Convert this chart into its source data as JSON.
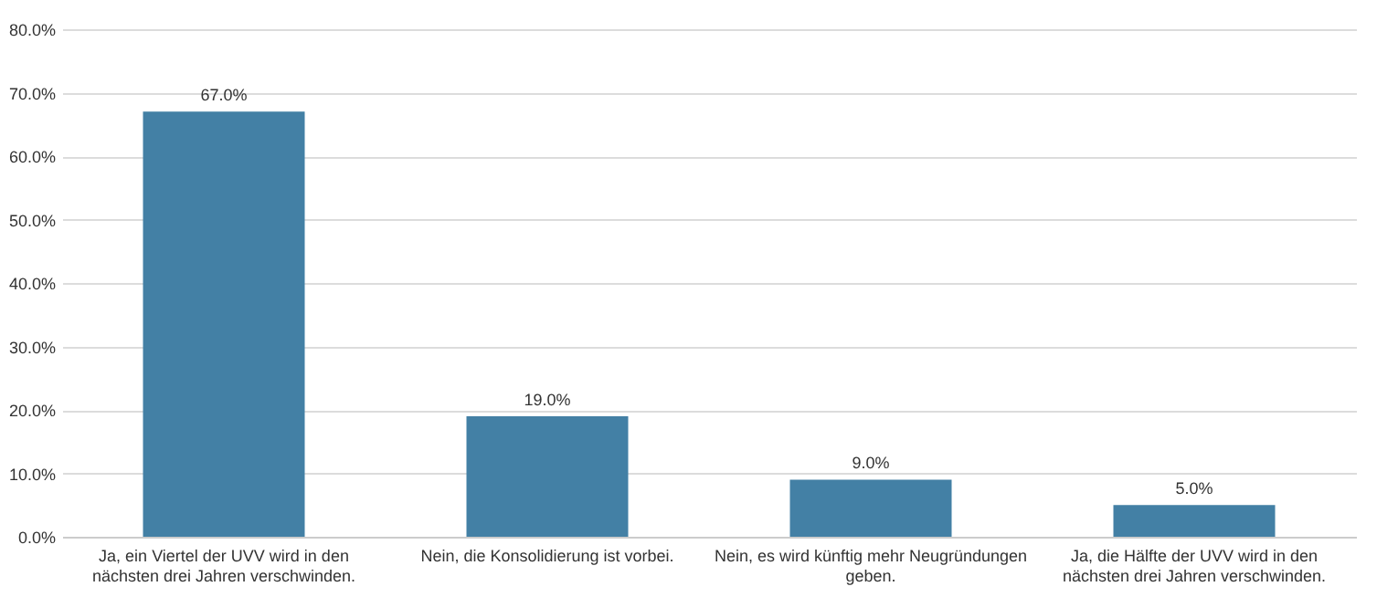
{
  "chart_data": {
    "type": "bar",
    "categories": [
      "Ja, ein Viertel der UVV wird in den nächsten drei Jahren verschwinden.",
      "Nein, die Konsolidierung ist vorbei.",
      "Nein, es wird künftig mehr Neugründungen geben.",
      "Ja, die Hälfte der UVV wird in den nächsten drei Jahren verschwinden."
    ],
    "values": [
      67,
      19,
      9,
      5
    ],
    "value_labels": [
      "67.0%",
      "19.0%",
      "9.0%",
      "5.0%"
    ],
    "color": "#4380a5",
    "ylim": [
      0,
      80
    ],
    "yticks": [
      {
        "value": 0,
        "label": "0.0%"
      },
      {
        "value": 10,
        "label": "10.0%"
      },
      {
        "value": 20,
        "label": "20.0%"
      },
      {
        "value": 30,
        "label": "30.0%"
      },
      {
        "value": 40,
        "label": "40.0%"
      },
      {
        "value": 50,
        "label": "50.0%"
      },
      {
        "value": 60,
        "label": "60.0%"
      },
      {
        "value": 70,
        "label": "70.0%"
      },
      {
        "value": 80,
        "label": "80.0%"
      }
    ],
    "grid": "y"
  }
}
